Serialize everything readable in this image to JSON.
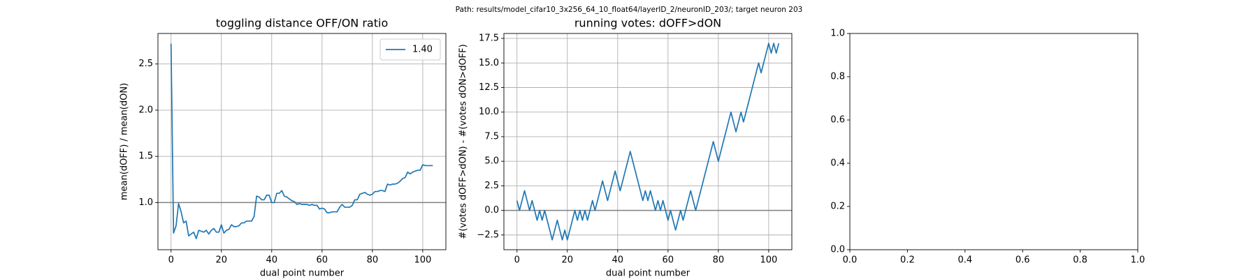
{
  "suptitle": "Path: results/model_cifar10_3x256_64_10_float64/layerID_2/neuronID_203/; target neuron 203",
  "chart_data": [
    {
      "type": "line",
      "title": "toggling distance OFF/ON ratio",
      "xlabel": "dual point number",
      "ylabel": "mean(dOFF) / mean(dON)",
      "x": [
        0,
        1,
        2,
        3,
        4,
        5,
        6,
        7,
        8,
        9,
        10,
        11,
        12,
        13,
        14,
        15,
        16,
        17,
        18,
        19,
        20,
        21,
        22,
        23,
        24,
        25,
        26,
        27,
        28,
        29,
        30,
        31,
        32,
        33,
        34,
        35,
        36,
        37,
        38,
        39,
        40,
        41,
        42,
        43,
        44,
        45,
        46,
        47,
        48,
        49,
        50,
        51,
        52,
        53,
        54,
        55,
        56,
        57,
        58,
        59,
        60,
        61,
        62,
        63,
        64,
        65,
        66,
        67,
        68,
        69,
        70,
        71,
        72,
        73,
        74,
        75,
        76,
        77,
        78,
        79,
        80,
        81,
        82,
        83,
        84,
        85,
        86,
        87,
        88,
        89,
        90,
        91,
        92,
        93,
        94,
        95,
        96,
        97,
        98,
        99,
        100,
        101,
        102,
        103,
        104
      ],
      "series": [
        {
          "name": "1.40",
          "color": "#1f77b4",
          "values": [
            2.72,
            0.67,
            0.75,
            0.99,
            0.9,
            0.78,
            0.8,
            0.64,
            0.66,
            0.68,
            0.61,
            0.7,
            0.69,
            0.68,
            0.7,
            0.66,
            0.7,
            0.72,
            0.68,
            0.68,
            0.76,
            0.67,
            0.7,
            0.71,
            0.76,
            0.74,
            0.74,
            0.75,
            0.78,
            0.78,
            0.8,
            0.8,
            0.8,
            0.85,
            1.07,
            1.06,
            1.03,
            1.03,
            1.08,
            1.08,
            1.0,
            1.0,
            1.1,
            1.1,
            1.13,
            1.07,
            1.06,
            1.04,
            1.02,
            1.01,
            0.98,
            0.99,
            0.98,
            0.98,
            0.98,
            0.97,
            0.98,
            0.97,
            0.97,
            0.93,
            0.94,
            0.93,
            0.89,
            0.89,
            0.9,
            0.9,
            0.9,
            0.95,
            0.98,
            0.95,
            0.95,
            0.95,
            0.97,
            1.03,
            1.03,
            1.09,
            1.1,
            1.11,
            1.09,
            1.08,
            1.09,
            1.12,
            1.12,
            1.13,
            1.13,
            1.12,
            1.2,
            1.19,
            1.2,
            1.2,
            1.21,
            1.23,
            1.26,
            1.27,
            1.33,
            1.31,
            1.33,
            1.34,
            1.35,
            1.35,
            1.41,
            1.4,
            1.4,
            1.4,
            1.4
          ]
        }
      ],
      "xlim": [
        -5.2,
        109.2
      ],
      "xticks": [
        0,
        20,
        40,
        60,
        80,
        100
      ],
      "ylim": [
        0.49,
        2.83
      ],
      "yticks": [
        {
          "value": 1,
          "label": "1.0"
        },
        {
          "value": 1.5,
          "label": "1.5"
        },
        {
          "value": 2,
          "label": "2.0"
        },
        {
          "value": 2.5,
          "label": "2.5"
        }
      ],
      "hline": 1,
      "grid": true,
      "legend": "upper right"
    },
    {
      "type": "line",
      "title": "running votes: dOFF>dON",
      "xlabel": "dual point number",
      "ylabel": "#(votes dOFF>dON) - #(votes dON>dOFF)",
      "x": [
        0,
        1,
        2,
        3,
        4,
        5,
        6,
        7,
        8,
        9,
        10,
        11,
        12,
        13,
        14,
        15,
        16,
        17,
        18,
        19,
        20,
        21,
        22,
        23,
        24,
        25,
        26,
        27,
        28,
        29,
        30,
        31,
        32,
        33,
        34,
        35,
        36,
        37,
        38,
        39,
        40,
        41,
        42,
        43,
        44,
        45,
        46,
        47,
        48,
        49,
        50,
        51,
        52,
        53,
        54,
        55,
        56,
        57,
        58,
        59,
        60,
        61,
        62,
        63,
        64,
        65,
        66,
        67,
        68,
        69,
        70,
        71,
        72,
        73,
        74,
        75,
        76,
        77,
        78,
        79,
        80,
        81,
        82,
        83,
        84,
        85,
        86,
        87,
        88,
        89,
        90,
        91,
        92,
        93,
        94,
        95,
        96,
        97,
        98,
        99,
        100,
        101,
        102,
        103,
        104
      ],
      "series": [
        {
          "color": "#1f77b4",
          "values": [
            1,
            0,
            1,
            2,
            1,
            0,
            1,
            0,
            -1,
            0,
            -1,
            0,
            -1,
            -2,
            -3,
            -2,
            -1,
            -2,
            -3,
            -2,
            -3,
            -2,
            -1,
            0,
            -1,
            0,
            -1,
            0,
            -1,
            0,
            1,
            0,
            1,
            2,
            3,
            2,
            1,
            2,
            3,
            4,
            3,
            2,
            3,
            4,
            5,
            6,
            5,
            4,
            3,
            2,
            1,
            2,
            1,
            2,
            1,
            0,
            1,
            0,
            1,
            0,
            -1,
            0,
            -1,
            -2,
            -1,
            0,
            -1,
            0,
            1,
            2,
            1,
            0,
            1,
            2,
            3,
            4,
            5,
            6,
            7,
            6,
            5,
            6,
            7,
            8,
            9,
            10,
            9,
            8,
            9,
            10,
            9,
            10,
            11,
            12,
            13,
            14,
            15,
            14,
            15,
            16,
            17,
            16,
            17,
            16,
            17
          ]
        }
      ],
      "xlim": [
        -5.2,
        109.2
      ],
      "xticks": [
        0,
        20,
        40,
        60,
        80,
        100
      ],
      "ylim": [
        -4,
        18
      ],
      "yticks": [
        {
          "value": -2.5,
          "label": "−2.5"
        },
        {
          "value": 0,
          "label": "0.0"
        },
        {
          "value": 2.5,
          "label": "2.5"
        },
        {
          "value": 5,
          "label": "5.0"
        },
        {
          "value": 7.5,
          "label": "7.5"
        },
        {
          "value": 10,
          "label": "10.0"
        },
        {
          "value": 12.5,
          "label": "12.5"
        },
        {
          "value": 15,
          "label": "15.0"
        },
        {
          "value": 17.5,
          "label": "17.5"
        }
      ],
      "hline": 0,
      "grid": true
    },
    {
      "type": "line",
      "xlim": [
        0,
        1
      ],
      "xticks": [
        {
          "value": 0,
          "label": "0.0"
        },
        {
          "value": 0.2,
          "label": "0.2"
        },
        {
          "value": 0.4,
          "label": "0.4"
        },
        {
          "value": 0.6,
          "label": "0.6"
        },
        {
          "value": 0.8,
          "label": "0.8"
        },
        {
          "value": 1,
          "label": "1.0"
        }
      ],
      "ylim": [
        0,
        1
      ],
      "yticks": [
        {
          "value": 0,
          "label": "0.0"
        },
        {
          "value": 0.2,
          "label": "0.2"
        },
        {
          "value": 0.4,
          "label": "0.4"
        },
        {
          "value": 0.6,
          "label": "0.6"
        },
        {
          "value": 0.8,
          "label": "0.8"
        },
        {
          "value": 1,
          "label": "1.0"
        }
      ],
      "grid": false
    }
  ]
}
